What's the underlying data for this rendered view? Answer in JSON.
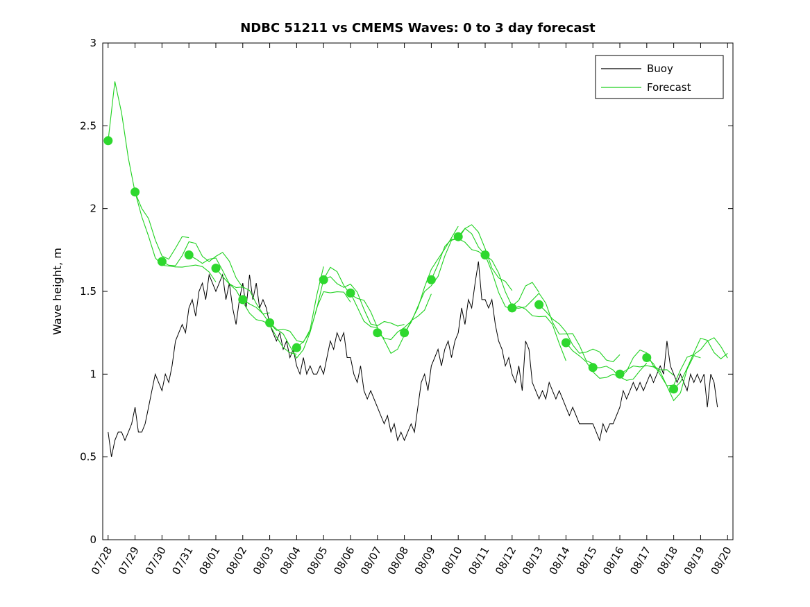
{
  "chart_data": {
    "type": "line",
    "title": "NDBC 51211 vs CMEMS Waves: 0 to 3 day forecast",
    "xlabel": "",
    "ylabel": "Wave height, m",
    "ylim": [
      0,
      3
    ],
    "xlim_days": [
      -0.2,
      23.2
    ],
    "yticks": [
      0,
      0.5,
      1,
      1.5,
      2,
      2.5,
      3
    ],
    "ytick_labels": [
      "0",
      "0.5",
      "1",
      "1.5",
      "2",
      "2.5",
      "3"
    ],
    "xtick_days": [
      0,
      1,
      2,
      3,
      4,
      5,
      6,
      7,
      8,
      9,
      10,
      11,
      12,
      13,
      14,
      15,
      16,
      17,
      18,
      19,
      20,
      21,
      22,
      23
    ],
    "xtick_labels": [
      "07/28",
      "07/29",
      "07/30",
      "07/31",
      "08/01",
      "08/02",
      "08/03",
      "08/04",
      "08/05",
      "08/06",
      "08/07",
      "08/08",
      "08/09",
      "08/10",
      "08/11",
      "08/12",
      "08/13",
      "08/14",
      "08/15",
      "08/16",
      "08/17",
      "08/18",
      "08/19",
      "08/20"
    ],
    "xtick_rotation_deg": -60,
    "grid": false,
    "legend": {
      "position": "top-right-inside",
      "entries": [
        {
          "label": "Buoy",
          "color": "#000000"
        },
        {
          "label": "Forecast",
          "color": "#1ed11e"
        }
      ]
    },
    "colors": {
      "buoy": "#000000",
      "forecast_line": "#1ed11e",
      "forecast_marker": "#2ed82e",
      "axes": "#000000",
      "background": "#ffffff"
    },
    "buoy": {
      "name": "Buoy",
      "t_start_days": 0,
      "t_step_days": 0.125,
      "values": [
        0.65,
        0.5,
        0.6,
        0.65,
        0.65,
        0.6,
        0.65,
        0.7,
        0.8,
        0.65,
        0.65,
        0.7,
        0.8,
        0.9,
        1.0,
        0.95,
        0.9,
        1.0,
        0.95,
        1.05,
        1.2,
        1.25,
        1.3,
        1.25,
        1.4,
        1.45,
        1.35,
        1.5,
        1.55,
        1.45,
        1.6,
        1.55,
        1.5,
        1.55,
        1.6,
        1.45,
        1.55,
        1.4,
        1.3,
        1.45,
        1.55,
        1.4,
        1.6,
        1.45,
        1.55,
        1.4,
        1.45,
        1.4,
        1.3,
        1.25,
        1.2,
        1.25,
        1.15,
        1.2,
        1.1,
        1.15,
        1.05,
        1.0,
        1.1,
        1.0,
        1.05,
        1.0,
        1.0,
        1.05,
        1.0,
        1.1,
        1.2,
        1.15,
        1.25,
        1.2,
        1.25,
        1.1,
        1.1,
        1.0,
        0.95,
        1.05,
        0.9,
        0.85,
        0.9,
        0.85,
        0.8,
        0.75,
        0.7,
        0.75,
        0.65,
        0.7,
        0.6,
        0.65,
        0.6,
        0.65,
        0.7,
        0.65,
        0.8,
        0.95,
        1.0,
        0.9,
        1.05,
        1.1,
        1.15,
        1.05,
        1.15,
        1.2,
        1.1,
        1.2,
        1.25,
        1.4,
        1.3,
        1.45,
        1.4,
        1.55,
        1.68,
        1.45,
        1.45,
        1.4,
        1.45,
        1.3,
        1.2,
        1.15,
        1.05,
        1.1,
        1.0,
        0.95,
        1.05,
        0.9,
        1.2,
        1.15,
        0.95,
        0.9,
        0.85,
        0.9,
        0.85,
        0.95,
        0.9,
        0.85,
        0.9,
        0.85,
        0.8,
        0.75,
        0.8,
        0.75,
        0.7,
        0.7,
        0.7,
        0.7,
        0.7,
        0.65,
        0.6,
        0.7,
        0.65,
        0.7,
        0.7,
        0.75,
        0.8,
        0.9,
        0.85,
        0.9,
        0.95,
        0.9,
        0.95,
        0.9,
        0.95,
        1.0,
        0.95,
        1.0,
        1.05,
        1.0,
        1.2,
        1.05,
        1.0,
        0.95,
        1.0,
        0.95,
        0.9,
        1.0,
        0.95,
        1.0,
        0.95,
        1.0,
        0.8,
        1.0,
        0.95,
        0.8
      ]
    },
    "forecast_base": {
      "name": "Forecast",
      "t_start_days": 0,
      "t_step_days": 0.25,
      "values": [
        2.41,
        2.75,
        2.55,
        2.3,
        2.1,
        1.95,
        1.85,
        1.74,
        1.68,
        1.65,
        1.66,
        1.7,
        1.72,
        1.7,
        1.67,
        1.66,
        1.64,
        1.6,
        1.55,
        1.5,
        1.45,
        1.42,
        1.38,
        1.34,
        1.31,
        1.27,
        1.24,
        1.2,
        1.16,
        1.18,
        1.25,
        1.42,
        1.57,
        1.58,
        1.55,
        1.52,
        1.49,
        1.42,
        1.35,
        1.29,
        1.25,
        1.22,
        1.2,
        1.22,
        1.25,
        1.32,
        1.4,
        1.49,
        1.57,
        1.65,
        1.74,
        1.8,
        1.83,
        1.86,
        1.83,
        1.78,
        1.72,
        1.62,
        1.52,
        1.45,
        1.4,
        1.4,
        1.42,
        1.43,
        1.42,
        1.38,
        1.32,
        1.25,
        1.19,
        1.15,
        1.11,
        1.07,
        1.04,
        1.03,
        1.02,
        1.01,
        1.0,
        1.02,
        1.05,
        1.08,
        1.1,
        1.05,
        1.0,
        0.95,
        0.91,
        0.95,
        1.05,
        1.12,
        1.15,
        1.14,
        1.12,
        1.1,
        1.08
      ]
    },
    "forecast_markers": {
      "t_days": [
        0,
        1,
        2,
        3,
        4,
        5,
        6,
        7,
        8,
        9,
        10,
        11,
        12,
        13,
        14,
        15,
        16,
        17,
        18,
        19,
        20,
        21
      ],
      "values": [
        2.41,
        2.1,
        1.68,
        1.72,
        1.64,
        1.45,
        1.31,
        1.16,
        1.57,
        1.49,
        1.25,
        1.25,
        1.57,
        1.83,
        1.72,
        1.4,
        1.42,
        1.19,
        1.04,
        1.0,
        1.1,
        0.91
      ]
    },
    "forecast_runs": {
      "run_length_days": 3,
      "run_step_days": 0.25,
      "runs": [
        {
          "start_day": 0,
          "spread": 0.1,
          "wiggle": 0.04
        },
        {
          "start_day": 1,
          "spread": -0.06,
          "wiggle": 0.03
        },
        {
          "start_day": 2,
          "spread": 0.12,
          "wiggle": 0.05
        },
        {
          "start_day": 3,
          "spread": 0.07,
          "wiggle": 0.04
        },
        {
          "start_day": 4,
          "spread": -0.06,
          "wiggle": 0.03
        },
        {
          "start_day": 5,
          "spread": 0.05,
          "wiggle": 0.03
        },
        {
          "start_day": 6,
          "spread": -0.07,
          "wiggle": 0.04
        },
        {
          "start_day": 7,
          "spread": 0.06,
          "wiggle": 0.05
        },
        {
          "start_day": 8,
          "spread": 0.09,
          "wiggle": 0.04
        },
        {
          "start_day": 9,
          "spread": -0.06,
          "wiggle": 0.05
        },
        {
          "start_day": 10,
          "spread": 0.05,
          "wiggle": 0.03
        },
        {
          "start_day": 11,
          "spread": -0.05,
          "wiggle": 0.04
        },
        {
          "start_day": 12,
          "spread": 0.08,
          "wiggle": 0.04
        },
        {
          "start_day": 13,
          "spread": 0.09,
          "wiggle": 0.05
        },
        {
          "start_day": 14,
          "spread": -0.07,
          "wiggle": 0.04
        },
        {
          "start_day": 15,
          "spread": 0.06,
          "wiggle": 0.05
        },
        {
          "start_day": 16,
          "spread": 0.11,
          "wiggle": 0.04
        },
        {
          "start_day": 17,
          "spread": -0.06,
          "wiggle": 0.03
        },
        {
          "start_day": 18,
          "spread": 0.05,
          "wiggle": 0.04
        },
        {
          "start_day": 19,
          "spread": -0.05,
          "wiggle": 0.04
        },
        {
          "start_day": 20,
          "spread": 0.06,
          "wiggle": 0.05
        },
        {
          "start_day": 21,
          "spread": 0.07,
          "wiggle": 0.05
        }
      ]
    }
  }
}
